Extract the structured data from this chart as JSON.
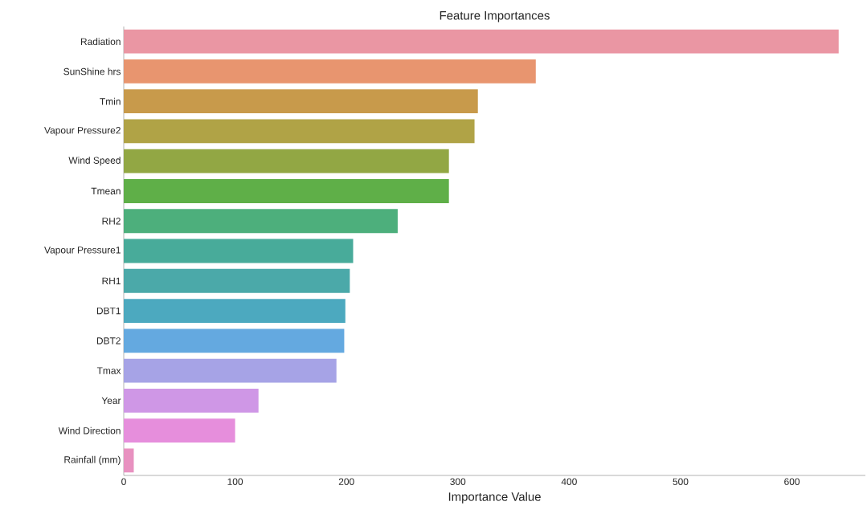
{
  "chart_data": {
    "type": "bar",
    "orientation": "horizontal",
    "title": "Feature Importances",
    "xlabel": "Importance Value",
    "categories": [
      "Radiation",
      "SunShine hrs",
      "Tmin",
      "Vapour Pressure2",
      "Wind Speed",
      "Tmean",
      "RH2",
      "Vapour Pressure1",
      "RH1",
      "DBT1",
      "DBT2",
      "Tmax",
      "Year",
      "Wind Direction",
      "Rainfall (mm)"
    ],
    "values": [
      642,
      370,
      318,
      315,
      292,
      292,
      246,
      206,
      203,
      199,
      198,
      191,
      121,
      100,
      9
    ],
    "colors": [
      "#ea96a3",
      "#e8956f",
      "#c89a4b",
      "#b0a346",
      "#92a744",
      "#5faf48",
      "#4daf7c",
      "#48ab9a",
      "#4ba9a9",
      "#4ca9bf",
      "#64a9e0",
      "#a6a3e6",
      "#cf97e6",
      "#e68edc",
      "#e891c0"
    ],
    "xlim": [
      0,
      666
    ],
    "xticks": [
      0,
      100,
      200,
      300,
      400,
      500,
      600
    ]
  }
}
